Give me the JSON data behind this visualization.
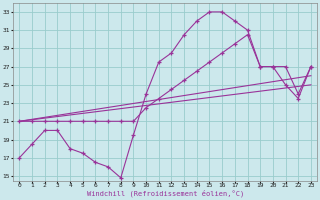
{
  "xlabel": "Windchill (Refroidissement éolien,°C)",
  "bg_color": "#cce8ec",
  "grid_color": "#99cccc",
  "line_color": "#993399",
  "xlim": [
    -0.5,
    23.5
  ],
  "ylim": [
    14.5,
    34
  ],
  "xticks": [
    0,
    1,
    2,
    3,
    4,
    5,
    6,
    7,
    8,
    9,
    10,
    11,
    12,
    13,
    14,
    15,
    16,
    17,
    18,
    19,
    20,
    21,
    22,
    23
  ],
  "yticks": [
    15,
    17,
    19,
    21,
    23,
    25,
    27,
    29,
    31,
    33
  ],
  "series": [
    {
      "x": [
        0,
        1,
        2,
        3,
        4,
        5,
        6,
        7,
        8,
        9,
        10,
        11,
        12,
        13,
        14,
        15,
        16,
        17,
        18,
        19,
        20,
        21,
        22,
        23
      ],
      "y": [
        17,
        18.5,
        20,
        20,
        18,
        17.5,
        16.5,
        16,
        14.8,
        19.5,
        24,
        27.5,
        28.5,
        30.5,
        32,
        33,
        33,
        32,
        31,
        27,
        27,
        25,
        23.5,
        27
      ],
      "marker": true
    },
    {
      "x": [
        0,
        1,
        2,
        3,
        4,
        5,
        6,
        7,
        8,
        9,
        10,
        11,
        12,
        13,
        14,
        15,
        16,
        17,
        18,
        19,
        20,
        21,
        22,
        23
      ],
      "y": [
        21,
        21,
        21,
        21,
        21,
        21,
        21,
        21,
        21,
        21,
        22.5,
        23.5,
        24.5,
        25.5,
        26.5,
        27.5,
        28.5,
        29.5,
        30.5,
        27,
        27,
        27,
        24,
        27
      ],
      "marker": true
    },
    {
      "x": [
        0,
        23
      ],
      "y": [
        21,
        26
      ],
      "marker": false
    },
    {
      "x": [
        0,
        23
      ],
      "y": [
        21,
        25
      ],
      "marker": false
    }
  ]
}
